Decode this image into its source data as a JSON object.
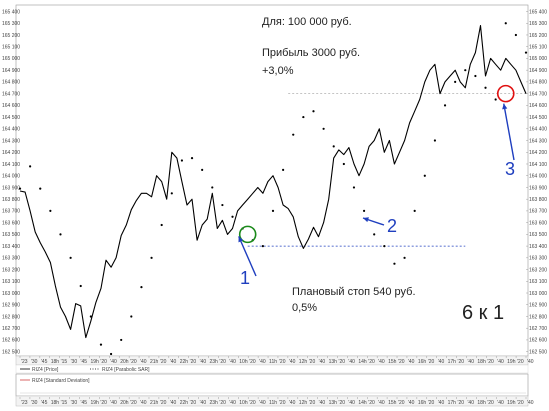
{
  "annotations": {
    "for_label": "Для: 100 000 руб.",
    "profit_label": "Прибыль 3000 руб.",
    "profit_pct": "+3,0%",
    "stop_label": "Плановый стоп 540 руб.",
    "stop_pct": "0,5%",
    "ratio_label": "6 к 1",
    "marker_1": "1",
    "marker_2": "2",
    "marker_3": "3"
  },
  "legend": {
    "price": "RIZ4 [Price]",
    "sar": "RIZ4 [Parabolic SAR]",
    "stddev": "RIZ4 [Standard Deviation]"
  },
  "colors": {
    "price_line": "#000000",
    "sar_dots": "#000000",
    "entry_circle": "#1a8a1a",
    "exit_circle": "#e01010",
    "arrows": "#1f3fbf",
    "stop_line": "#1f3fbf",
    "target_line": "#8a8a8a"
  },
  "chart_data": {
    "type": "line",
    "y_ticks": [
      "165 400",
      "165 300",
      "165 200",
      "165 100",
      "165 000",
      "164 900",
      "164 800",
      "164 700",
      "164 600",
      "164 500",
      "164 400",
      "164 300",
      "164 200",
      "164 100",
      "164 000",
      "163 900",
      "163 800",
      "163 700",
      "163 600",
      "163 500",
      "163 400",
      "163 300",
      "163 200",
      "163 100",
      "163 000",
      "162 900",
      "162 800",
      "162 700",
      "162 600",
      "162 500"
    ],
    "ylim": [
      162480,
      165430
    ],
    "x_ticks": [
      "'23",
      "'30",
      "'45",
      "18h",
      "'15",
      "'30",
      "'45",
      "19h",
      "'20",
      "'40",
      "20h",
      "'20",
      "'40",
      "21h",
      "'20",
      "'40",
      "22h",
      "'20",
      "'40",
      "23h",
      "'20",
      "'40",
      "10h",
      "'20",
      "'40",
      "11h",
      "'20",
      "'40",
      "12h",
      "'20",
      "'40",
      "13h",
      "'20",
      "'40",
      "14h",
      "'20",
      "'40",
      "15h",
      "'20",
      "'40",
      "16h",
      "'20",
      "'40",
      "17h",
      "'20",
      "'40",
      "18h",
      "'20",
      "'40",
      "19h",
      "'20",
      "'40"
    ],
    "x_range": [
      0,
      100
    ],
    "series": [
      {
        "kind": "line",
        "x": [
          0,
          1,
          2,
          3,
          4,
          5,
          6,
          7,
          8,
          9,
          10,
          11,
          12,
          13,
          14,
          15,
          16,
          17,
          18,
          19,
          20,
          21,
          22,
          23,
          24,
          25,
          26,
          27,
          28,
          29,
          30,
          31,
          32,
          33,
          34,
          35,
          36,
          37,
          38,
          39,
          40,
          41,
          42,
          43,
          44,
          45,
          46,
          47,
          48,
          49,
          50,
          51,
          52,
          53,
          54,
          55,
          56,
          57,
          58,
          59,
          60,
          61,
          62,
          63,
          64,
          65,
          66,
          67,
          68,
          69,
          70,
          71,
          72,
          73,
          74,
          75,
          76,
          77,
          78,
          79,
          80,
          81,
          82,
          83,
          84,
          85,
          86,
          87,
          88,
          89,
          90,
          91,
          92,
          93,
          94,
          95,
          96,
          97,
          98,
          99,
          100
        ],
        "y": [
          163870,
          163860,
          163700,
          163520,
          163430,
          163350,
          163260,
          163060,
          162880,
          162800,
          162690,
          162910,
          162890,
          162620,
          162760,
          162920,
          163040,
          163280,
          163220,
          163300,
          163490,
          163580,
          163710,
          163790,
          163850,
          163850,
          163820,
          164000,
          163950,
          163800,
          164200,
          164150,
          163950,
          163750,
          163800,
          163450,
          163580,
          163630,
          163850,
          163550,
          163620,
          163500,
          163550,
          163700,
          163750,
          163800,
          163850,
          163900,
          163850,
          163950,
          164000,
          163900,
          163750,
          163720,
          163650,
          163480,
          163380,
          163460,
          163560,
          163480,
          163600,
          163800,
          164150,
          164220,
          164180,
          164240,
          164100,
          164000,
          164100,
          164250,
          164300,
          164400,
          164200,
          164300,
          164100,
          164200,
          164300,
          164450,
          164550,
          164650,
          164800,
          164900,
          164950,
          164700,
          164800,
          164850,
          164900,
          164800,
          164750,
          164950,
          165050,
          165280,
          164850,
          165000,
          164950,
          164900,
          165000,
          164950,
          164900,
          164800,
          164700
        ]
      },
      {
        "kind": "dots",
        "x": [
          0,
          2,
          4,
          6,
          8,
          10,
          12,
          14,
          16,
          18,
          20,
          22,
          24,
          26,
          28,
          30,
          32,
          34,
          36,
          38,
          40,
          42,
          44,
          46,
          48,
          50,
          52,
          54,
          56,
          58,
          60,
          62,
          64,
          66,
          68,
          70,
          72,
          74,
          76,
          78,
          80,
          82,
          84,
          86,
          88,
          90,
          92,
          94,
          96,
          98,
          100
        ],
        "y": [
          163890,
          164080,
          163890,
          163700,
          163500,
          163300,
          163060,
          162800,
          162560,
          162480,
          162600,
          162800,
          163050,
          163300,
          163580,
          163850,
          164130,
          164150,
          164050,
          163900,
          163750,
          163650,
          163550,
          163450,
          163400,
          163700,
          164050,
          164350,
          164500,
          164550,
          164400,
          164250,
          164100,
          163900,
          163700,
          163500,
          163400,
          163250,
          163300,
          163700,
          164000,
          164300,
          164600,
          164800,
          164900,
          164850,
          164750,
          164650,
          165300,
          165200,
          165050
        ]
      }
    ],
    "stop_level": 163400,
    "target_level": 164700,
    "entry_x": 45,
    "entry_y": 163500,
    "exit_x": 96,
    "exit_y": 164700
  }
}
